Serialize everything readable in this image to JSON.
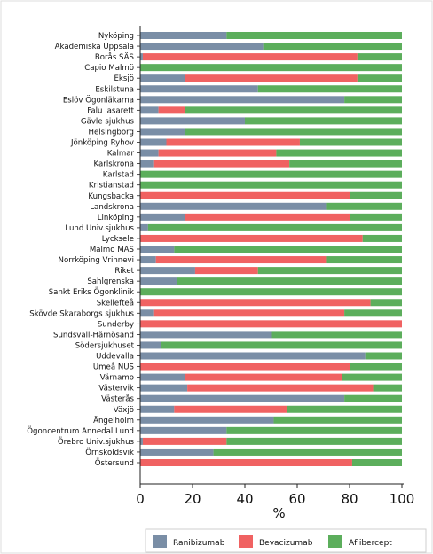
{
  "chart_data": {
    "type": "bar",
    "orientation": "horizontal",
    "stacked": true,
    "xlabel": "%",
    "xlim": [
      0,
      100
    ],
    "xticks": [
      0,
      20,
      40,
      60,
      80,
      100
    ],
    "grid": false,
    "legend_position": "bottom",
    "categories": [
      "Nyköping",
      "Akademiska Uppsala",
      "Borås SÄS",
      "Capio Malmö",
      "Eksjö",
      "Eskilstuna",
      "Eslöv Ögonläkarna",
      "Falu lasarett",
      "Gävle sjukhus",
      "Helsingborg",
      "Jönköping Ryhov",
      "Kalmar",
      "Karlskrona",
      "Karlstad",
      "Kristianstad",
      "Kungsbacka",
      "Landskrona",
      "Linköping",
      "Lund Univ.sjukhus",
      "Lycksele",
      "Malmö MAS",
      "Norrköping Vrinnevi",
      "Riket",
      "Sahlgrenska",
      "Sankt Eriks Ögonklinik",
      "Skellefteå",
      "Skövde Skaraborgs sjukhus",
      "Sunderby",
      "Sundsvall-Härnösand",
      "Södersjukhuset",
      "Uddevalla",
      "Umeå NUS",
      "Värnamo",
      "Västervik",
      "Västerås",
      "Växjö",
      "Ängelholm",
      "Ögoncentrum Annedal Lund",
      "Örebro Univ.sjukhus",
      "Örnsköldsvik",
      "Östersund"
    ],
    "series": [
      {
        "name": "Ranibizumab",
        "color": "#7a8ea6",
        "values": [
          33,
          47,
          1,
          0,
          17,
          45,
          78,
          7,
          40,
          17,
          10,
          7,
          5,
          0,
          0,
          0,
          71,
          17,
          3,
          0,
          13,
          6,
          21,
          14,
          0,
          0,
          5,
          0,
          50,
          8,
          86,
          0,
          17,
          18,
          78,
          13,
          51,
          33,
          1,
          28,
          0
        ]
      },
      {
        "name": "Bevacizumab",
        "color": "#f06262",
        "values": [
          0,
          0,
          82,
          0,
          66,
          0,
          0,
          10,
          0,
          0,
          51,
          45,
          52,
          0,
          0,
          80,
          0,
          63,
          0,
          85,
          0,
          65,
          24,
          0,
          0,
          88,
          73,
          100,
          0,
          0,
          0,
          80,
          60,
          71,
          0,
          43,
          0,
          0,
          32,
          0,
          81
        ]
      },
      {
        "name": "Aflibercept",
        "color": "#5cae5c",
        "values": [
          67,
          53,
          17,
          100,
          17,
          55,
          22,
          83,
          60,
          83,
          39,
          48,
          43,
          100,
          100,
          20,
          29,
          20,
          97,
          15,
          87,
          29,
          55,
          86,
          100,
          12,
          22,
          0,
          50,
          92,
          14,
          20,
          23,
          11,
          22,
          44,
          49,
          67,
          67,
          72,
          19
        ]
      }
    ]
  }
}
